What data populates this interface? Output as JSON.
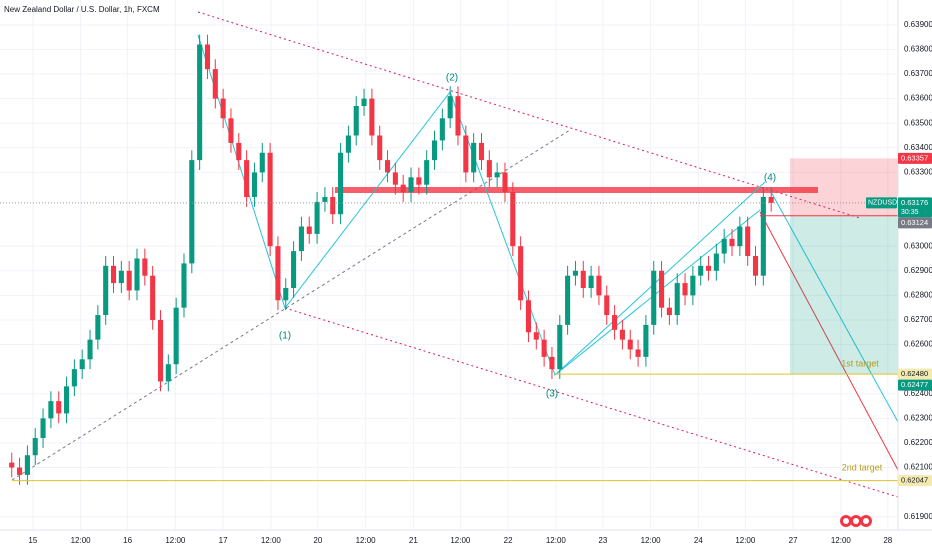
{
  "chart_data": {
    "type": "candlestick",
    "title": "New Zealand Dollar / U.S. Dollar, 1h, FXCM",
    "symbol": "NZDUSD",
    "countdown": "30:35",
    "up_color": "#089981",
    "down_color": "#f23645",
    "grid": true,
    "open": [
      0.6212,
      0.621,
      0.6207,
      0.6215,
      0.6222,
      0.623,
      0.6237,
      0.6232,
      0.6243,
      0.625,
      0.6254,
      0.6262,
      0.6272,
      0.6292,
      0.6285,
      0.629,
      0.6282,
      0.6295,
      0.6288,
      0.627,
      0.6245,
      0.6252,
      0.6275,
      0.6293,
      0.6335,
      0.6382,
      0.6372,
      0.636,
      0.6352,
      0.6342,
      0.6335,
      0.632,
      0.633,
      0.6338,
      0.63,
      0.6278,
      0.6283,
      0.6298,
      0.6308,
      0.6305,
      0.6318,
      0.632,
      0.6313,
      0.6338,
      0.6345,
      0.6357,
      0.636,
      0.6345,
      0.6335,
      0.633,
      0.6325,
      0.6322,
      0.6328,
      0.6325,
      0.6335,
      0.6343,
      0.6352,
      0.6361,
      0.6345,
      0.633,
      0.6342,
      0.6335,
      0.6328,
      0.633,
      0.6322,
      0.63,
      0.6278,
      0.6265,
      0.6262,
      0.6255,
      0.625,
      0.6268,
      0.6288,
      0.629,
      0.6283,
      0.6288,
      0.628,
      0.6272,
      0.6266,
      0.6262,
      0.6258,
      0.6255,
      0.6268,
      0.629,
      0.6275,
      0.6272,
      0.6285,
      0.628,
      0.6288,
      0.6292,
      0.629,
      0.6297,
      0.6303,
      0.63,
      0.6308,
      0.6296,
      0.6288,
      0.632
    ],
    "high": [
      0.6216,
      0.6214,
      0.6219,
      0.6226,
      0.6234,
      0.6241,
      0.6241,
      0.6247,
      0.6254,
      0.6258,
      0.6266,
      0.6276,
      0.6296,
      0.6296,
      0.6294,
      0.6294,
      0.6299,
      0.6299,
      0.6292,
      0.6274,
      0.6256,
      0.6279,
      0.6297,
      0.6339,
      0.6386,
      0.6386,
      0.6376,
      0.6364,
      0.6356,
      0.6346,
      0.6339,
      0.6334,
      0.6342,
      0.6342,
      0.6304,
      0.6287,
      0.6302,
      0.6312,
      0.6312,
      0.6322,
      0.6324,
      0.6324,
      0.6342,
      0.6349,
      0.6361,
      0.6364,
      0.6364,
      0.6349,
      0.6339,
      0.6334,
      0.6329,
      0.6332,
      0.6332,
      0.6339,
      0.6347,
      0.6356,
      0.6365,
      0.6365,
      0.6349,
      0.6346,
      0.6346,
      0.6339,
      0.6334,
      0.6334,
      0.6326,
      0.6304,
      0.6282,
      0.6269,
      0.6266,
      0.6259,
      0.6272,
      0.6292,
      0.6294,
      0.6294,
      0.6292,
      0.6292,
      0.6284,
      0.6276,
      0.627,
      0.6266,
      0.6262,
      0.6272,
      0.6294,
      0.6294,
      0.6279,
      0.6289,
      0.6289,
      0.6292,
      0.6296,
      0.6296,
      0.6301,
      0.6307,
      0.6307,
      0.6312,
      0.6312,
      0.63,
      0.6324,
      0.6324
    ],
    "low": [
      0.6206,
      0.6203,
      0.6203,
      0.6211,
      0.6218,
      0.6226,
      0.6228,
      0.6228,
      0.6239,
      0.6246,
      0.625,
      0.6258,
      0.6268,
      0.6281,
      0.6281,
      0.6278,
      0.6278,
      0.6284,
      0.6266,
      0.6241,
      0.6241,
      0.6248,
      0.6271,
      0.6289,
      0.6331,
      0.6368,
      0.6356,
      0.6348,
      0.6338,
      0.6331,
      0.6316,
      0.6316,
      0.6326,
      0.6296,
      0.6274,
      0.6274,
      0.6279,
      0.6294,
      0.6301,
      0.6301,
      0.6314,
      0.6309,
      0.6309,
      0.6334,
      0.6341,
      0.6353,
      0.6341,
      0.6331,
      0.6326,
      0.6321,
      0.6318,
      0.6318,
      0.6321,
      0.6321,
      0.6331,
      0.6339,
      0.6348,
      0.6341,
      0.6326,
      0.6326,
      0.6331,
      0.6324,
      0.6324,
      0.6318,
      0.6296,
      0.6274,
      0.6261,
      0.6258,
      0.6251,
      0.6246,
      0.6246,
      0.6264,
      0.6284,
      0.6279,
      0.6279,
      0.6276,
      0.6268,
      0.6262,
      0.6258,
      0.6254,
      0.6251,
      0.6251,
      0.6264,
      0.6271,
      0.6268,
      0.6268,
      0.6276,
      0.6276,
      0.6284,
      0.6286,
      0.6286,
      0.6293,
      0.6296,
      0.6296,
      0.6292,
      0.6284,
      0.6284,
      0.6314
    ],
    "close": [
      0.621,
      0.6207,
      0.6215,
      0.6222,
      0.623,
      0.6237,
      0.6232,
      0.6243,
      0.625,
      0.6254,
      0.6262,
      0.6272,
      0.6292,
      0.6285,
      0.629,
      0.6282,
      0.6295,
      0.6288,
      0.627,
      0.6245,
      0.6252,
      0.6275,
      0.6293,
      0.6335,
      0.6382,
      0.6372,
      0.636,
      0.6352,
      0.6342,
      0.6335,
      0.632,
      0.633,
      0.6338,
      0.63,
      0.6278,
      0.6283,
      0.6298,
      0.6308,
      0.6305,
      0.6318,
      0.632,
      0.6313,
      0.6338,
      0.6345,
      0.6357,
      0.636,
      0.6345,
      0.6335,
      0.633,
      0.6325,
      0.6322,
      0.6328,
      0.6325,
      0.6335,
      0.6343,
      0.6352,
      0.6361,
      0.6345,
      0.633,
      0.6342,
      0.6335,
      0.6328,
      0.633,
      0.6322,
      0.63,
      0.6278,
      0.6265,
      0.6262,
      0.6255,
      0.625,
      0.6268,
      0.6288,
      0.629,
      0.6283,
      0.6288,
      0.628,
      0.6272,
      0.6266,
      0.6262,
      0.6258,
      0.6255,
      0.6268,
      0.629,
      0.6275,
      0.6272,
      0.6285,
      0.628,
      0.6288,
      0.6292,
      0.629,
      0.6297,
      0.6303,
      0.63,
      0.6308,
      0.6296,
      0.6288,
      0.632,
      0.63176
    ],
    "xlim": [
      -1.5,
      113.2
    ],
    "ylim": [
      0.61846,
      0.64001
    ],
    "xticks": [
      {
        "value": 2.7,
        "label": "15"
      },
      {
        "value": 8.8,
        "label": "12:00"
      },
      {
        "value": 14.8,
        "label": "16"
      },
      {
        "value": 20.9,
        "label": "12:00"
      },
      {
        "value": 27.0,
        "label": "17"
      },
      {
        "value": 33.1,
        "label": "12:00"
      },
      {
        "value": 39.1,
        "label": "20"
      },
      {
        "value": 45.2,
        "label": "12:00"
      },
      {
        "value": 51.3,
        "label": "21"
      },
      {
        "value": 57.3,
        "label": "12:00"
      },
      {
        "value": 63.4,
        "label": "22"
      },
      {
        "value": 69.5,
        "label": "12:00"
      },
      {
        "value": 75.5,
        "label": "23"
      },
      {
        "value": 81.6,
        "label": "12:00"
      },
      {
        "value": 87.7,
        "label": "24"
      },
      {
        "value": 93.7,
        "label": "12:00"
      },
      {
        "value": 99.8,
        "label": "27"
      },
      {
        "value": 105.9,
        "label": "12:00"
      },
      {
        "value": 111.9,
        "label": "28"
      }
    ],
    "yticks": [
      {
        "value": 0.639,
        "label": "0.63900"
      },
      {
        "value": 0.638,
        "label": "0.63800"
      },
      {
        "value": 0.637,
        "label": "0.63700"
      },
      {
        "value": 0.636,
        "label": "0.63600"
      },
      {
        "value": 0.635,
        "label": "0.63500"
      },
      {
        "value": 0.634,
        "label": "0.63400"
      },
      {
        "value": 0.633,
        "label": "0.63300"
      },
      {
        "value": 0.63,
        "label": "0.63000"
      },
      {
        "value": 0.629,
        "label": "0.62900"
      },
      {
        "value": 0.628,
        "label": "0.62800"
      },
      {
        "value": 0.627,
        "label": "0.62700"
      },
      {
        "value": 0.626,
        "label": "0.62600"
      },
      {
        "value": 0.624,
        "label": "0.62400"
      },
      {
        "value": 0.623,
        "label": "0.62300"
      },
      {
        "value": 0.622,
        "label": "0.62200"
      },
      {
        "value": 0.621,
        "label": "0.62100"
      },
      {
        "value": 0.619,
        "label": "0.61900"
      }
    ],
    "price_tags": [
      {
        "value": 0.63357,
        "color": "#f23645"
      },
      {
        "value": 0.63176,
        "color": "#089981"
      },
      {
        "value": 0.63124,
        "color": "#787b86"
      },
      {
        "value": 0.6248,
        "label": "0.62480",
        "color": "#f3eab0"
      },
      {
        "value": 0.62477,
        "color": "#089981"
      },
      {
        "value": 0.62047,
        "color": "#f3eab0"
      }
    ],
    "waves": [
      "(1)",
      "(2)",
      "(3)",
      "(4)"
    ],
    "targets": [
      "1st target",
      "2nd target"
    ]
  }
}
